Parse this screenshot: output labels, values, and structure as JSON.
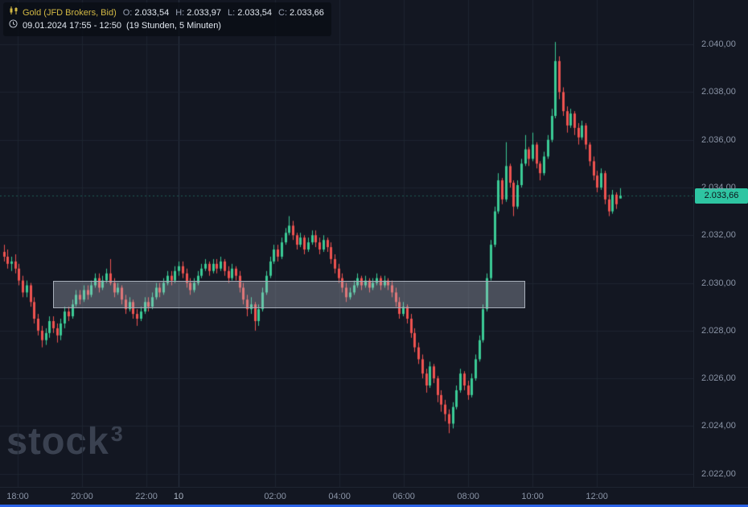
{
  "header": {
    "symbol": "Gold (JFD Brokers, Bid)",
    "ohlc": [
      {
        "label": "O:",
        "value": "2.033,54"
      },
      {
        "label": "H:",
        "value": "2.033,97"
      },
      {
        "label": "L:",
        "value": "2.033,54"
      },
      {
        "label": "C:",
        "value": "2.033,66"
      }
    ],
    "date_range": "09.01.2024 17:55 - 12:50",
    "duration": "(19 Stunden, 5 Minuten)"
  },
  "watermark": {
    "text": "stock",
    "sup": "3"
  },
  "last_price": {
    "text": "2.033,66",
    "value": 2033.66
  },
  "colors": {
    "background": "#131722",
    "grid": "#1e2531",
    "grid_strong": "#2a3342",
    "up": "#3bcb96",
    "down": "#ef5350",
    "zone_fill": "rgba(190,197,208,0.32)",
    "zone_border": "#a9b0bb",
    "axis_text": "#8b95a7",
    "badge_bg": "#2ec5a2",
    "badge_text": "#0d1219",
    "last_price_line": "rgba(46,197,162,0.40)",
    "symbol_text": "#d3b945",
    "watermark": "#3a4150",
    "scrollbar": "#2b63e8"
  },
  "chart_data": {
    "type": "candlestick",
    "instrument": "Gold (JFD Brokers, Bid)",
    "interval": "5 Minuten",
    "session": "09.01.2024 17:55 - 10.01.2024 12:50",
    "ylim": [
      2021.45,
      2041.86
    ],
    "price_axis": [
      {
        "text": "2.040,00",
        "value": 2040
      },
      {
        "text": "2.038,00",
        "value": 2038
      },
      {
        "text": "2.036,00",
        "value": 2036
      },
      {
        "text": "2.034,00",
        "value": 2034
      },
      {
        "text": "2.032,00",
        "value": 2032
      },
      {
        "text": "2.030,00",
        "value": 2030
      },
      {
        "text": "2.028,00",
        "value": 2028
      },
      {
        "text": "2.026,00",
        "value": 2026
      },
      {
        "text": "2.024,00",
        "value": 2024
      },
      {
        "text": "2.022,00",
        "value": 2022
      }
    ],
    "time_axis": [
      {
        "text": "18:00",
        "minutes": 5
      },
      {
        "text": "20:00",
        "minutes": 125
      },
      {
        "text": "22:00",
        "minutes": 245
      },
      {
        "text": "10",
        "minutes": 305,
        "session_break": true
      },
      {
        "text": "02:00",
        "minutes": 485
      },
      {
        "text": "04:00",
        "minutes": 605
      },
      {
        "text": "06:00",
        "minutes": 725
      },
      {
        "text": "08:00",
        "minutes": 845
      },
      {
        "text": "10:00",
        "minutes": 965
      },
      {
        "text": "12:00",
        "minutes": 1085
      }
    ],
    "zone": {
      "start_index": 13,
      "end_index": 137,
      "price_top": 2030.1,
      "price_bottom": 2028.95
    },
    "candles": [
      [
        2031.3,
        2031.6,
        2030.9,
        2031.1
      ],
      [
        2031.1,
        2031.4,
        2030.6,
        2030.8
      ],
      [
        2030.8,
        2031.1,
        2030.5,
        2030.9
      ],
      [
        2030.9,
        2031.2,
        2030.4,
        2030.6
      ],
      [
        2030.6,
        2030.8,
        2029.9,
        2030.1
      ],
      [
        2030.1,
        2030.3,
        2029.4,
        2029.6
      ],
      [
        2029.6,
        2030.1,
        2029.4,
        2029.9
      ],
      [
        2029.9,
        2030.0,
        2029.0,
        2029.2
      ],
      [
        2029.2,
        2029.4,
        2028.3,
        2028.5
      ],
      [
        2028.5,
        2028.7,
        2027.8,
        2028.0
      ],
      [
        2028.0,
        2028.2,
        2027.3,
        2027.6
      ],
      [
        2027.6,
        2028.1,
        2027.4,
        2027.9
      ],
      [
        2027.9,
        2028.6,
        2027.7,
        2028.4
      ],
      [
        2028.4,
        2028.6,
        2027.9,
        2028.1
      ],
      [
        2028.1,
        2028.3,
        2027.5,
        2027.8
      ],
      [
        2027.8,
        2028.5,
        2027.6,
        2028.3
      ],
      [
        2028.3,
        2029.0,
        2028.1,
        2028.8
      ],
      [
        2028.8,
        2029.0,
        2028.4,
        2028.6
      ],
      [
        2028.6,
        2029.3,
        2028.5,
        2029.1
      ],
      [
        2029.1,
        2029.7,
        2029.0,
        2029.5
      ],
      [
        2029.5,
        2029.7,
        2029.1,
        2029.3
      ],
      [
        2029.3,
        2029.9,
        2029.2,
        2029.7
      ],
      [
        2029.7,
        2029.9,
        2029.3,
        2029.5
      ],
      [
        2029.5,
        2030.1,
        2029.4,
        2029.9
      ],
      [
        2029.9,
        2030.4,
        2029.8,
        2030.2
      ],
      [
        2030.2,
        2030.4,
        2029.6,
        2029.8
      ],
      [
        2029.8,
        2030.3,
        2029.7,
        2030.1
      ],
      [
        2030.1,
        2030.6,
        2030.0,
        2030.4
      ],
      [
        2030.4,
        2031.0,
        2029.9,
        2030.0
      ],
      [
        2030.0,
        2030.2,
        2029.4,
        2029.6
      ],
      [
        2029.6,
        2030.0,
        2029.5,
        2029.8
      ],
      [
        2029.8,
        2029.9,
        2029.1,
        2029.3
      ],
      [
        2029.3,
        2029.5,
        2028.7,
        2028.9
      ],
      [
        2028.9,
        2029.4,
        2028.8,
        2029.2
      ],
      [
        2029.2,
        2029.3,
        2028.5,
        2028.7
      ],
      [
        2028.7,
        2028.9,
        2028.2,
        2028.5
      ],
      [
        2028.5,
        2029.0,
        2028.4,
        2028.8
      ],
      [
        2028.8,
        2029.4,
        2028.7,
        2029.2
      ],
      [
        2029.2,
        2029.4,
        2028.8,
        2029.0
      ],
      [
        2029.0,
        2029.6,
        2028.9,
        2029.4
      ],
      [
        2029.4,
        2030.0,
        2029.3,
        2029.8
      ],
      [
        2029.8,
        2030.0,
        2029.4,
        2029.6
      ],
      [
        2029.6,
        2030.2,
        2029.5,
        2030.0
      ],
      [
        2030.0,
        2030.5,
        2029.9,
        2030.3
      ],
      [
        2030.3,
        2030.5,
        2029.9,
        2030.1
      ],
      [
        2030.1,
        2030.7,
        2030.0,
        2030.5
      ],
      [
        2030.5,
        2030.9,
        2030.3,
        2030.7
      ],
      [
        2030.7,
        2030.9,
        2030.2,
        2030.4
      ],
      [
        2030.4,
        2030.6,
        2029.8,
        2030.0
      ],
      [
        2030.0,
        2030.2,
        2029.5,
        2029.7
      ],
      [
        2029.7,
        2030.2,
        2029.6,
        2030.0
      ],
      [
        2030.0,
        2030.5,
        2029.9,
        2030.3
      ],
      [
        2030.3,
        2030.8,
        2030.2,
        2030.6
      ],
      [
        2030.6,
        2031.0,
        2030.5,
        2030.8
      ],
      [
        2030.8,
        2030.9,
        2030.3,
        2030.5
      ],
      [
        2030.5,
        2031.0,
        2030.4,
        2030.8
      ],
      [
        2030.8,
        2031.0,
        2030.4,
        2030.6
      ],
      [
        2030.6,
        2031.1,
        2030.5,
        2030.9
      ],
      [
        2030.9,
        2031.0,
        2030.3,
        2030.5
      ],
      [
        2030.5,
        2030.7,
        2030.0,
        2030.2
      ],
      [
        2030.2,
        2030.8,
        2030.1,
        2030.6
      ],
      [
        2030.6,
        2030.7,
        2030.1,
        2030.3
      ],
      [
        2030.3,
        2030.5,
        2029.6,
        2029.8
      ],
      [
        2029.8,
        2030.0,
        2029.1,
        2029.3
      ],
      [
        2029.3,
        2029.5,
        2028.6,
        2028.9
      ],
      [
        2028.9,
        2029.4,
        2028.7,
        2029.1
      ],
      [
        2029.1,
        2029.2,
        2028.0,
        2028.4
      ],
      [
        2028.4,
        2029.1,
        2028.2,
        2028.9
      ],
      [
        2028.9,
        2029.8,
        2028.8,
        2029.6
      ],
      [
        2029.6,
        2030.5,
        2029.5,
        2030.3
      ],
      [
        2030.3,
        2031.1,
        2030.2,
        2030.9
      ],
      [
        2030.9,
        2031.6,
        2030.8,
        2031.4
      ],
      [
        2031.4,
        2031.6,
        2030.9,
        2031.1
      ],
      [
        2031.1,
        2031.9,
        2031.0,
        2031.7
      ],
      [
        2031.7,
        2032.3,
        2031.6,
        2032.1
      ],
      [
        2032.1,
        2032.8,
        2032.0,
        2032.4
      ],
      [
        2032.4,
        2032.6,
        2031.8,
        2032.0
      ],
      [
        2032.0,
        2032.1,
        2031.4,
        2031.6
      ],
      [
        2031.6,
        2032.1,
        2031.5,
        2031.9
      ],
      [
        2031.9,
        2032.0,
        2031.2,
        2031.4
      ],
      [
        2031.4,
        2031.9,
        2031.3,
        2031.7
      ],
      [
        2031.7,
        2032.2,
        2031.6,
        2032.0
      ],
      [
        2032.0,
        2032.2,
        2031.5,
        2031.7
      ],
      [
        2031.7,
        2031.9,
        2031.2,
        2031.4
      ],
      [
        2031.4,
        2032.0,
        2031.3,
        2031.8
      ],
      [
        2031.8,
        2031.9,
        2031.3,
        2031.5
      ],
      [
        2031.5,
        2031.7,
        2030.8,
        2031.0
      ],
      [
        2031.0,
        2031.2,
        2030.4,
        2030.6
      ],
      [
        2030.6,
        2030.8,
        2030.0,
        2030.2
      ],
      [
        2030.2,
        2030.4,
        2029.6,
        2029.8
      ],
      [
        2029.8,
        2030.0,
        2029.2,
        2029.4
      ],
      [
        2029.4,
        2029.8,
        2029.3,
        2029.6
      ],
      [
        2029.6,
        2030.1,
        2029.5,
        2029.9
      ],
      [
        2029.9,
        2030.4,
        2029.8,
        2030.2
      ],
      [
        2030.2,
        2030.3,
        2029.7,
        2029.9
      ],
      [
        2029.9,
        2030.3,
        2029.8,
        2030.1
      ],
      [
        2030.1,
        2030.2,
        2029.6,
        2029.8
      ],
      [
        2029.8,
        2030.2,
        2029.7,
        2030.0
      ],
      [
        2030.0,
        2030.4,
        2029.9,
        2030.2
      ],
      [
        2030.2,
        2030.3,
        2029.7,
        2029.9
      ],
      [
        2029.9,
        2030.3,
        2029.8,
        2030.1
      ],
      [
        2030.1,
        2030.2,
        2029.7,
        2029.9
      ],
      [
        2029.9,
        2030.1,
        2029.4,
        2029.6
      ],
      [
        2029.6,
        2029.8,
        2029.0,
        2029.2
      ],
      [
        2029.2,
        2029.4,
        2028.5,
        2028.7
      ],
      [
        2028.7,
        2029.2,
        2028.6,
        2029.0
      ],
      [
        2029.0,
        2029.1,
        2028.3,
        2028.5
      ],
      [
        2028.5,
        2028.7,
        2027.7,
        2027.9
      ],
      [
        2027.9,
        2028.1,
        2027.1,
        2027.3
      ],
      [
        2027.3,
        2027.5,
        2026.6,
        2026.8
      ],
      [
        2026.8,
        2027.0,
        2026.0,
        2026.2
      ],
      [
        2026.2,
        2026.4,
        2025.4,
        2025.7
      ],
      [
        2025.7,
        2026.7,
        2025.6,
        2026.5
      ],
      [
        2026.5,
        2026.6,
        2025.8,
        2026.0
      ],
      [
        2026.0,
        2026.1,
        2025.0,
        2025.3
      ],
      [
        2025.3,
        2025.5,
        2024.6,
        2024.9
      ],
      [
        2024.9,
        2025.1,
        2024.2,
        2024.5
      ],
      [
        2024.5,
        2024.7,
        2023.7,
        2024.1
      ],
      [
        2024.1,
        2025.0,
        2023.9,
        2024.8
      ],
      [
        2024.8,
        2025.7,
        2024.7,
        2025.5
      ],
      [
        2025.5,
        2026.4,
        2025.4,
        2026.2
      ],
      [
        2026.2,
        2026.3,
        2025.5,
        2025.7
      ],
      [
        2025.7,
        2025.9,
        2025.1,
        2025.3
      ],
      [
        2025.3,
        2026.2,
        2025.2,
        2026.0
      ],
      [
        2026.0,
        2027.0,
        2025.9,
        2026.8
      ],
      [
        2026.8,
        2027.8,
        2026.7,
        2027.6
      ],
      [
        2027.6,
        2029.1,
        2027.5,
        2028.9
      ],
      [
        2028.9,
        2030.4,
        2028.8,
        2030.2
      ],
      [
        2030.2,
        2031.8,
        2030.1,
        2031.6
      ],
      [
        2031.6,
        2033.2,
        2031.5,
        2033.0
      ],
      [
        2033.0,
        2034.6,
        2032.9,
        2034.3
      ],
      [
        2034.3,
        2034.4,
        2033.3,
        2033.5
      ],
      [
        2033.5,
        2035.9,
        2033.4,
        2034.9
      ],
      [
        2034.9,
        2035.0,
        2034.0,
        2034.2
      ],
      [
        2034.2,
        2034.3,
        2032.8,
        2033.2
      ],
      [
        2033.2,
        2034.3,
        2033.1,
        2034.1
      ],
      [
        2034.1,
        2035.2,
        2034.0,
        2035.0
      ],
      [
        2035.0,
        2036.2,
        2034.9,
        2035.6
      ],
      [
        2035.6,
        2035.7,
        2034.9,
        2035.2
      ],
      [
        2035.2,
        2036.3,
        2035.1,
        2035.8
      ],
      [
        2035.8,
        2035.9,
        2034.8,
        2035.0
      ],
      [
        2035.0,
        2035.1,
        2034.3,
        2034.6
      ],
      [
        2034.6,
        2035.5,
        2034.5,
        2035.3
      ],
      [
        2035.3,
        2036.2,
        2035.2,
        2036.0
      ],
      [
        2036.0,
        2037.3,
        2035.9,
        2037.0
      ],
      [
        2037.0,
        2040.1,
        2036.9,
        2039.3
      ],
      [
        2039.3,
        2039.5,
        2037.7,
        2038.0
      ],
      [
        2038.0,
        2038.2,
        2037.0,
        2037.2
      ],
      [
        2037.2,
        2037.4,
        2036.3,
        2036.6
      ],
      [
        2036.6,
        2037.3,
        2036.5,
        2037.1
      ],
      [
        2037.1,
        2037.2,
        2036.2,
        2036.5
      ],
      [
        2036.5,
        2036.7,
        2035.8,
        2036.1
      ],
      [
        2036.1,
        2036.8,
        2036.0,
        2036.6
      ],
      [
        2036.6,
        2036.7,
        2035.6,
        2035.8
      ],
      [
        2035.8,
        2035.9,
        2034.9,
        2035.1
      ],
      [
        2035.1,
        2035.3,
        2034.3,
        2034.5
      ],
      [
        2034.5,
        2034.7,
        2033.8,
        2034.0
      ],
      [
        2034.0,
        2034.8,
        2033.9,
        2034.6
      ],
      [
        2034.6,
        2034.7,
        2033.3,
        2033.5
      ],
      [
        2033.5,
        2033.7,
        2032.8,
        2033.0
      ],
      [
        2033.0,
        2033.9,
        2032.9,
        2033.7
      ],
      [
        2033.7,
        2033.8,
        2033.1,
        2033.3
      ],
      [
        2033.54,
        2033.97,
        2033.54,
        2033.66
      ]
    ]
  }
}
